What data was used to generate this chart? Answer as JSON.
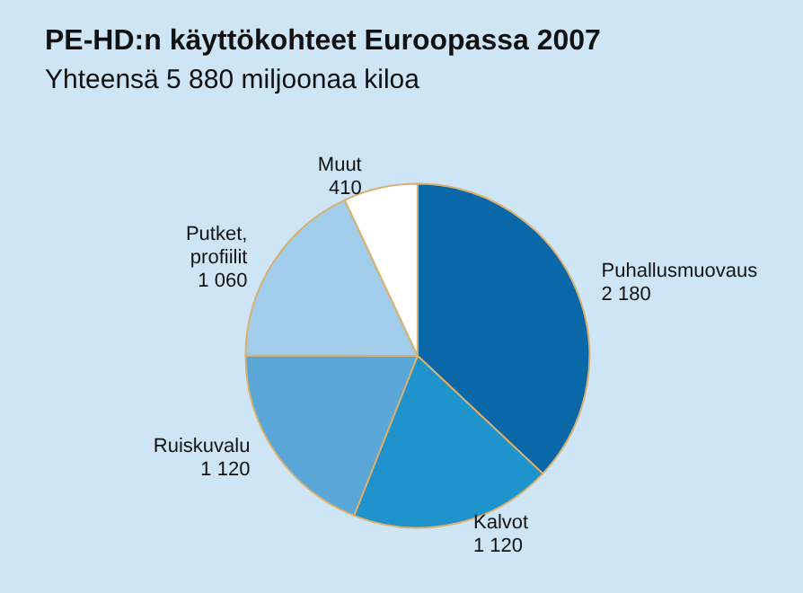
{
  "chart_data": {
    "type": "pie",
    "title": "PE-HD:n käyttökohteet Euroopassa 2007",
    "subtitle": "Yhteensä 5 880 miljoonaa kiloa",
    "categories": [
      "Puhallusmuovaus",
      "Kalvot",
      "Ruiskuvalu",
      "Putket, profiilit",
      "Muut"
    ],
    "values": [
      2180,
      1120,
      1120,
      1060,
      410
    ],
    "value_labels": [
      "2 180",
      "1 120",
      "1 120",
      "1 060",
      "410"
    ],
    "colors": [
      "#0b68a8",
      "#1e93cc",
      "#5aa6d6",
      "#a2cdea",
      "#ffffff"
    ],
    "legend": false
  }
}
